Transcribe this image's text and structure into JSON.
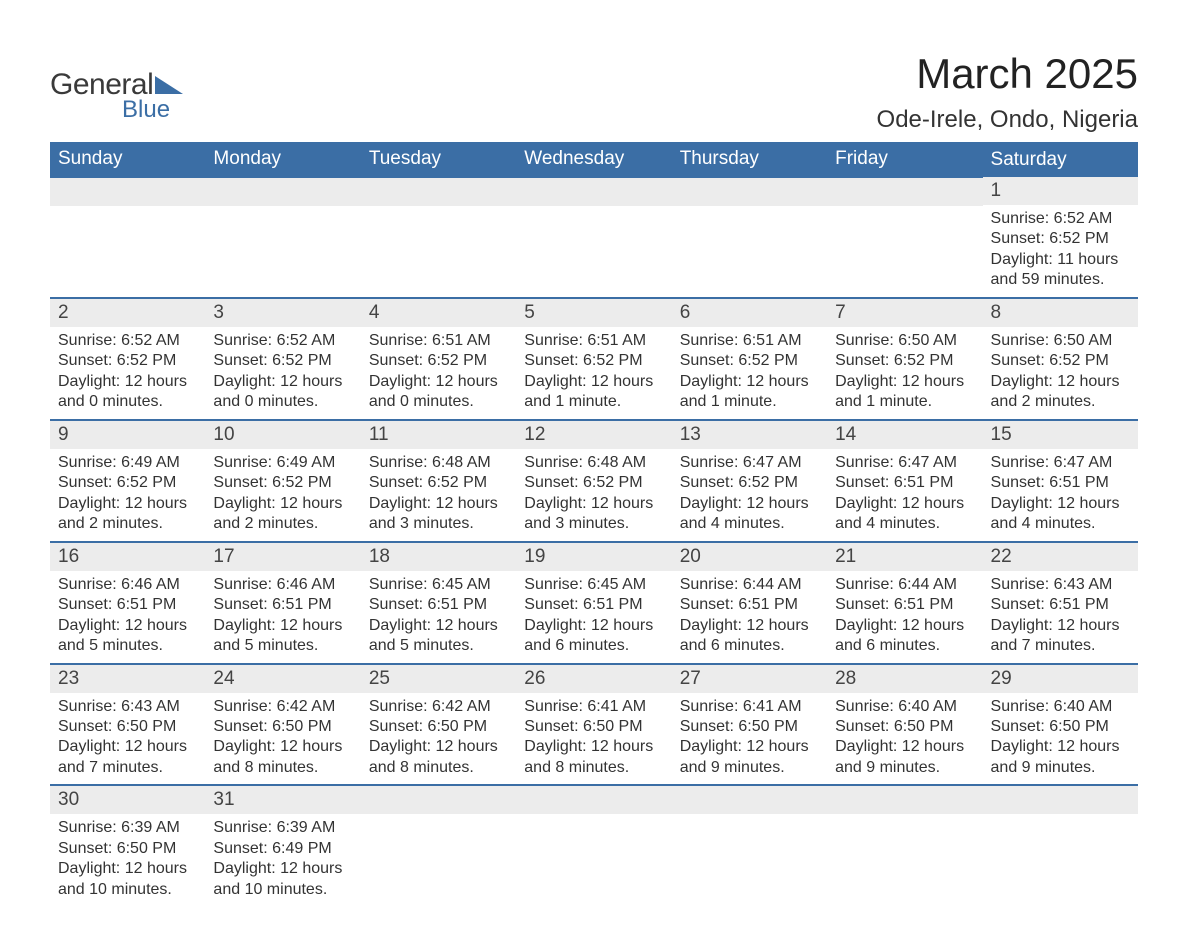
{
  "logo": {
    "line1": "General",
    "line2": "Blue"
  },
  "title": "March 2025",
  "location": "Ode-Irele, Ondo, Nigeria",
  "colors": {
    "header_bg": "#3b6ea5",
    "header_text": "#ffffff",
    "daynum_bg": "#ececec",
    "row_border": "#3b6ea5",
    "text": "#333333",
    "background": "#ffffff"
  },
  "day_headers": [
    "Sunday",
    "Monday",
    "Tuesday",
    "Wednesday",
    "Thursday",
    "Friday",
    "Saturday"
  ],
  "weeks": [
    [
      null,
      null,
      null,
      null,
      null,
      null,
      {
        "n": "1",
        "sunrise": "Sunrise: 6:52 AM",
        "sunset": "Sunset: 6:52 PM",
        "daylight": "Daylight: 11 hours and 59 minutes."
      }
    ],
    [
      {
        "n": "2",
        "sunrise": "Sunrise: 6:52 AM",
        "sunset": "Sunset: 6:52 PM",
        "daylight": "Daylight: 12 hours and 0 minutes."
      },
      {
        "n": "3",
        "sunrise": "Sunrise: 6:52 AM",
        "sunset": "Sunset: 6:52 PM",
        "daylight": "Daylight: 12 hours and 0 minutes."
      },
      {
        "n": "4",
        "sunrise": "Sunrise: 6:51 AM",
        "sunset": "Sunset: 6:52 PM",
        "daylight": "Daylight: 12 hours and 0 minutes."
      },
      {
        "n": "5",
        "sunrise": "Sunrise: 6:51 AM",
        "sunset": "Sunset: 6:52 PM",
        "daylight": "Daylight: 12 hours and 1 minute."
      },
      {
        "n": "6",
        "sunrise": "Sunrise: 6:51 AM",
        "sunset": "Sunset: 6:52 PM",
        "daylight": "Daylight: 12 hours and 1 minute."
      },
      {
        "n": "7",
        "sunrise": "Sunrise: 6:50 AM",
        "sunset": "Sunset: 6:52 PM",
        "daylight": "Daylight: 12 hours and 1 minute."
      },
      {
        "n": "8",
        "sunrise": "Sunrise: 6:50 AM",
        "sunset": "Sunset: 6:52 PM",
        "daylight": "Daylight: 12 hours and 2 minutes."
      }
    ],
    [
      {
        "n": "9",
        "sunrise": "Sunrise: 6:49 AM",
        "sunset": "Sunset: 6:52 PM",
        "daylight": "Daylight: 12 hours and 2 minutes."
      },
      {
        "n": "10",
        "sunrise": "Sunrise: 6:49 AM",
        "sunset": "Sunset: 6:52 PM",
        "daylight": "Daylight: 12 hours and 2 minutes."
      },
      {
        "n": "11",
        "sunrise": "Sunrise: 6:48 AM",
        "sunset": "Sunset: 6:52 PM",
        "daylight": "Daylight: 12 hours and 3 minutes."
      },
      {
        "n": "12",
        "sunrise": "Sunrise: 6:48 AM",
        "sunset": "Sunset: 6:52 PM",
        "daylight": "Daylight: 12 hours and 3 minutes."
      },
      {
        "n": "13",
        "sunrise": "Sunrise: 6:47 AM",
        "sunset": "Sunset: 6:52 PM",
        "daylight": "Daylight: 12 hours and 4 minutes."
      },
      {
        "n": "14",
        "sunrise": "Sunrise: 6:47 AM",
        "sunset": "Sunset: 6:51 PM",
        "daylight": "Daylight: 12 hours and 4 minutes."
      },
      {
        "n": "15",
        "sunrise": "Sunrise: 6:47 AM",
        "sunset": "Sunset: 6:51 PM",
        "daylight": "Daylight: 12 hours and 4 minutes."
      }
    ],
    [
      {
        "n": "16",
        "sunrise": "Sunrise: 6:46 AM",
        "sunset": "Sunset: 6:51 PM",
        "daylight": "Daylight: 12 hours and 5 minutes."
      },
      {
        "n": "17",
        "sunrise": "Sunrise: 6:46 AM",
        "sunset": "Sunset: 6:51 PM",
        "daylight": "Daylight: 12 hours and 5 minutes."
      },
      {
        "n": "18",
        "sunrise": "Sunrise: 6:45 AM",
        "sunset": "Sunset: 6:51 PM",
        "daylight": "Daylight: 12 hours and 5 minutes."
      },
      {
        "n": "19",
        "sunrise": "Sunrise: 6:45 AM",
        "sunset": "Sunset: 6:51 PM",
        "daylight": "Daylight: 12 hours and 6 minutes."
      },
      {
        "n": "20",
        "sunrise": "Sunrise: 6:44 AM",
        "sunset": "Sunset: 6:51 PM",
        "daylight": "Daylight: 12 hours and 6 minutes."
      },
      {
        "n": "21",
        "sunrise": "Sunrise: 6:44 AM",
        "sunset": "Sunset: 6:51 PM",
        "daylight": "Daylight: 12 hours and 6 minutes."
      },
      {
        "n": "22",
        "sunrise": "Sunrise: 6:43 AM",
        "sunset": "Sunset: 6:51 PM",
        "daylight": "Daylight: 12 hours and 7 minutes."
      }
    ],
    [
      {
        "n": "23",
        "sunrise": "Sunrise: 6:43 AM",
        "sunset": "Sunset: 6:50 PM",
        "daylight": "Daylight: 12 hours and 7 minutes."
      },
      {
        "n": "24",
        "sunrise": "Sunrise: 6:42 AM",
        "sunset": "Sunset: 6:50 PM",
        "daylight": "Daylight: 12 hours and 8 minutes."
      },
      {
        "n": "25",
        "sunrise": "Sunrise: 6:42 AM",
        "sunset": "Sunset: 6:50 PM",
        "daylight": "Daylight: 12 hours and 8 minutes."
      },
      {
        "n": "26",
        "sunrise": "Sunrise: 6:41 AM",
        "sunset": "Sunset: 6:50 PM",
        "daylight": "Daylight: 12 hours and 8 minutes."
      },
      {
        "n": "27",
        "sunrise": "Sunrise: 6:41 AM",
        "sunset": "Sunset: 6:50 PM",
        "daylight": "Daylight: 12 hours and 9 minutes."
      },
      {
        "n": "28",
        "sunrise": "Sunrise: 6:40 AM",
        "sunset": "Sunset: 6:50 PM",
        "daylight": "Daylight: 12 hours and 9 minutes."
      },
      {
        "n": "29",
        "sunrise": "Sunrise: 6:40 AM",
        "sunset": "Sunset: 6:50 PM",
        "daylight": "Daylight: 12 hours and 9 minutes."
      }
    ],
    [
      {
        "n": "30",
        "sunrise": "Sunrise: 6:39 AM",
        "sunset": "Sunset: 6:50 PM",
        "daylight": "Daylight: 12 hours and 10 minutes."
      },
      {
        "n": "31",
        "sunrise": "Sunrise: 6:39 AM",
        "sunset": "Sunset: 6:49 PM",
        "daylight": "Daylight: 12 hours and 10 minutes."
      },
      null,
      null,
      null,
      null,
      null
    ]
  ]
}
